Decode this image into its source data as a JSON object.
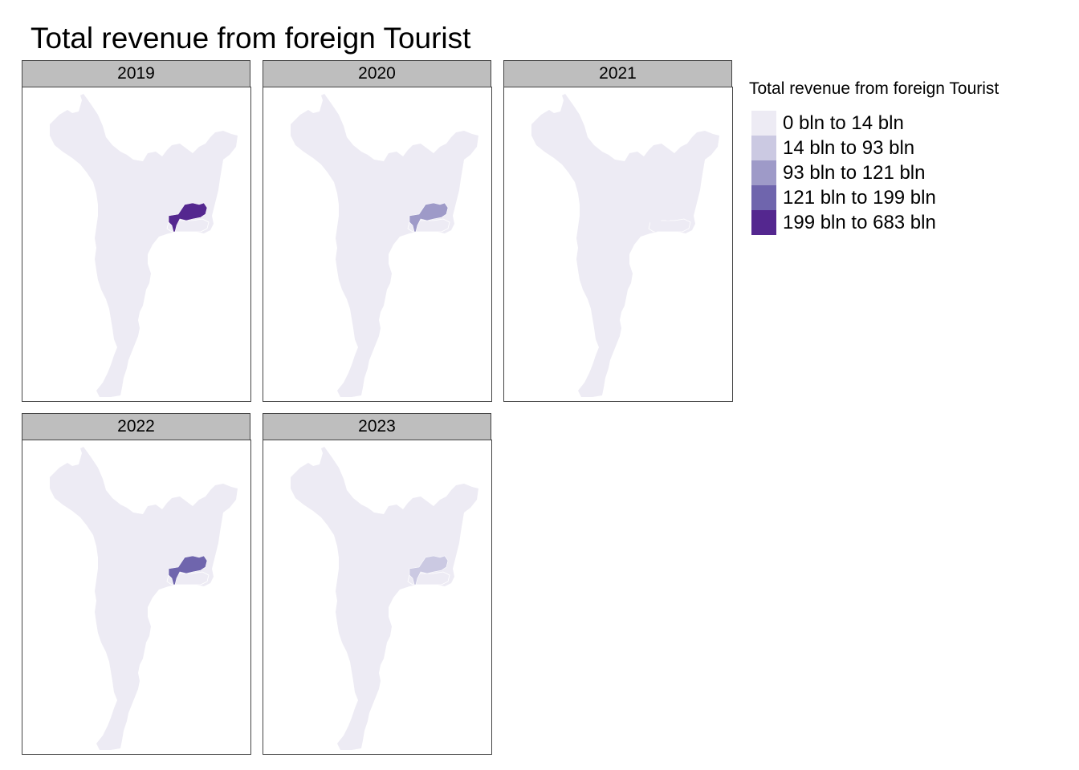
{
  "title": "Total revenue from foreign Tourist",
  "legend": {
    "title": "Total revenue from foreign Tourist",
    "items": [
      {
        "label": "0 bln to 14 bln",
        "color": "#edebf4"
      },
      {
        "label": "14 bln to 93 bln",
        "color": "#cbc9e2"
      },
      {
        "label": "93 bln to 121 bln",
        "color": "#9e9ac8"
      },
      {
        "label": "121 bln to 199 bln",
        "color": "#6f65ad"
      },
      {
        "label": "199 bln to 683 bln",
        "color": "#54278f"
      }
    ]
  },
  "panels": [
    {
      "year": "2019",
      "highlight_class": 4
    },
    {
      "year": "2020",
      "highlight_class": 2
    },
    {
      "year": "2021",
      "highlight_class": 0
    },
    {
      "year": "2022",
      "highlight_class": 3
    },
    {
      "year": "2023",
      "highlight_class": 1
    }
  ],
  "colors": {
    "strip": "#bebebe",
    "border": "#444444",
    "base_region": "#edebf4"
  }
}
